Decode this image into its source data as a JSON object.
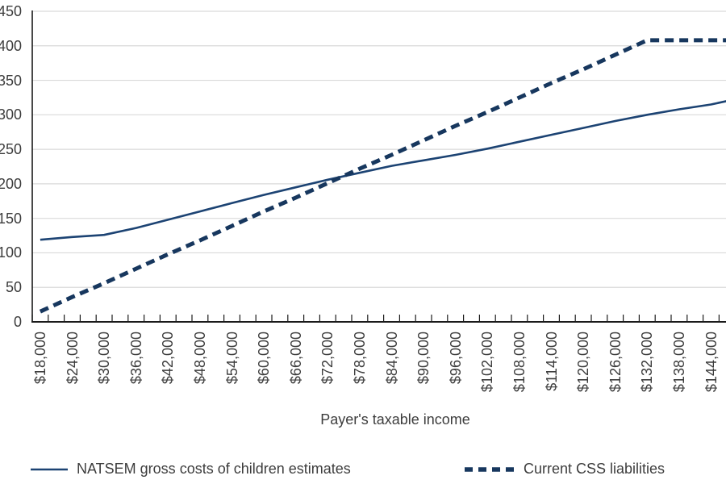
{
  "chart_data": {
    "type": "line",
    "title": "",
    "xlabel": "Payer's taxable income",
    "ylabel": "",
    "ylim": [
      0,
      450
    ],
    "y_ticks": [
      0,
      50,
      100,
      150,
      200,
      250,
      300,
      350,
      400,
      450
    ],
    "x_tick_step": 6000,
    "grid": "horizontal light-gray lines, white background",
    "legend_position": "bottom",
    "x_tick_labels": [
      "$18,000",
      "$24,000",
      "$30,000",
      "$36,000",
      "$42,000",
      "$48,000",
      "$54,000",
      "$60,000",
      "$66,000",
      "$72,000",
      "$78,000",
      "$84,000",
      "$90,000",
      "$96,000",
      "$102,000",
      "$108,000",
      "$114,000",
      "$120,000",
      "$126,000",
      "$132,000",
      "$138,000",
      "$144,000"
    ],
    "x": [
      18000,
      24000,
      30000,
      36000,
      42000,
      48000,
      54000,
      60000,
      66000,
      72000,
      78000,
      84000,
      90000,
      96000,
      102000,
      108000,
      114000,
      120000,
      126000,
      132000,
      138000,
      144000,
      147000
    ],
    "series": [
      {
        "name": "NATSEM gross costs of children estimates",
        "line_style": "solid",
        "color": "#1c4373",
        "values": [
          119,
          123,
          126,
          136,
          148,
          160,
          172,
          184,
          195,
          206,
          216,
          226,
          234,
          242,
          251,
          261,
          271,
          281,
          291,
          300,
          308,
          315,
          320
        ]
      },
      {
        "name": "Current CSS liabilities",
        "line_style": "dashed",
        "color": "#17375e",
        "values": [
          15,
          36,
          56,
          77,
          98,
          118,
          139,
          160,
          180,
          201,
          222,
          242,
          263,
          284,
          304,
          325,
          346,
          366,
          387,
          408,
          408,
          408,
          408
        ]
      }
    ],
    "colors": {
      "gridline": "#d9d9d9",
      "axis": "#1a1a1a",
      "tick": "#1a1a1a",
      "label_text": "#3d3d3d"
    }
  }
}
